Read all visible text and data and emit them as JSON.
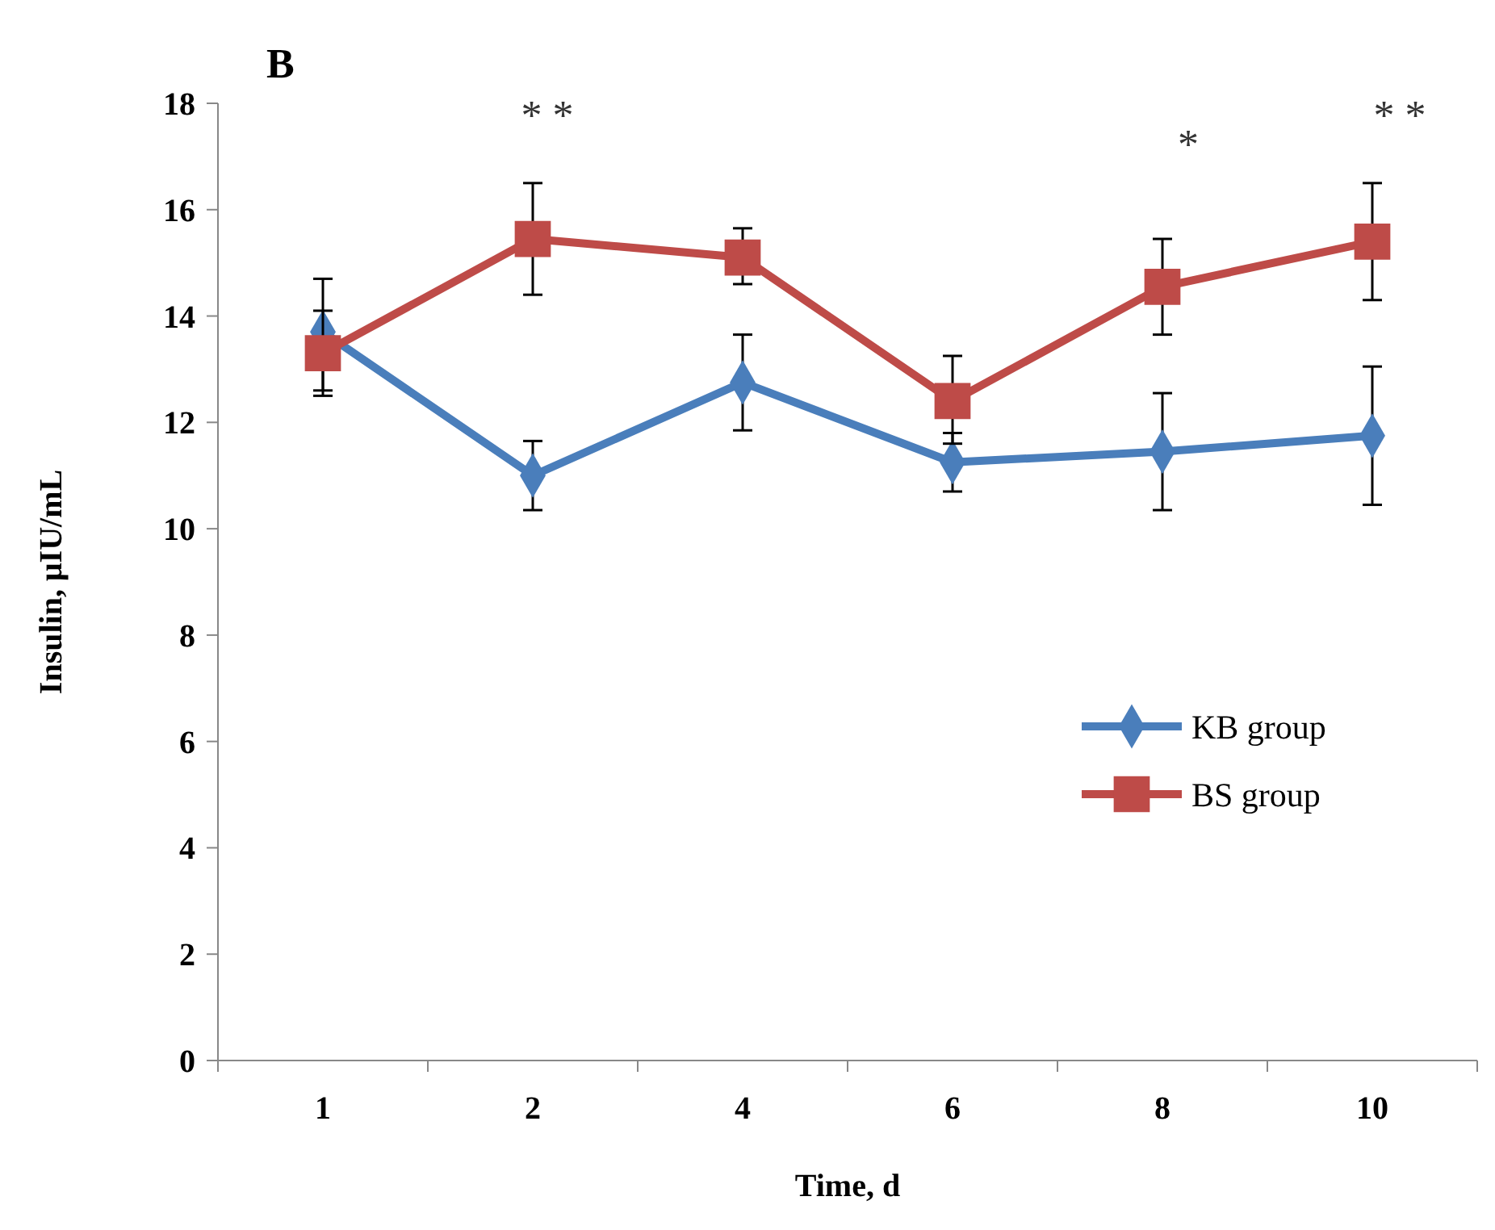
{
  "chart_data": {
    "type": "line",
    "title": "B",
    "xlabel": "Time, d",
    "ylabel": "Insulin, μIU/mL",
    "categories": [
      "1",
      "2",
      "4",
      "6",
      "8",
      "10"
    ],
    "series": [
      {
        "name": "KB group",
        "color": "#4a7ebb",
        "marker": "diamond",
        "values": [
          13.7,
          11.0,
          12.75,
          11.25,
          11.45,
          11.75
        ],
        "errors": [
          [
            12.6,
            14.7
          ],
          [
            10.35,
            11.65
          ],
          [
            11.85,
            13.65
          ],
          [
            10.7,
            11.8
          ],
          [
            10.35,
            12.55
          ],
          [
            10.45,
            13.05
          ]
        ]
      },
      {
        "name": "BS group",
        "color": "#be4b48",
        "marker": "square",
        "values": [
          13.3,
          15.45,
          15.1,
          12.4,
          14.55,
          15.4
        ],
        "errors": [
          [
            12.5,
            14.1
          ],
          [
            14.4,
            16.5
          ],
          [
            14.6,
            15.65
          ],
          [
            11.6,
            13.25
          ],
          [
            13.65,
            15.45
          ],
          [
            14.3,
            16.5
          ]
        ]
      }
    ],
    "ylim": [
      0,
      18
    ],
    "yticks": [
      0,
      2,
      4,
      6,
      8,
      10,
      12,
      14,
      16,
      18
    ],
    "grid": false,
    "legend": "right",
    "annotations": [
      "* *",
      "*",
      "* *"
    ]
  }
}
